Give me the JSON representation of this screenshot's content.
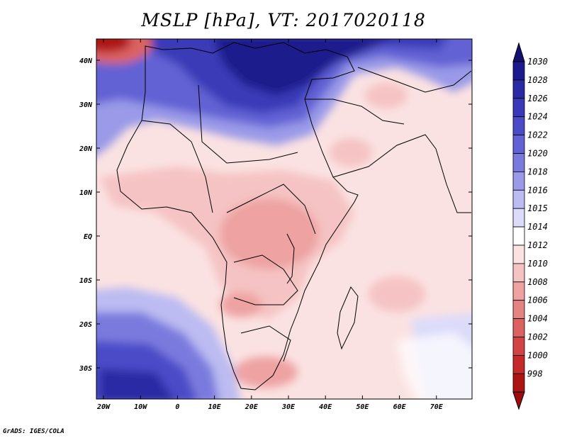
{
  "title": "MSLP [hPa], VT: 2017020118",
  "credit": "GrADS: IGES/COLA",
  "axes": {
    "lon_ticks": [
      "20W",
      "10W",
      "0",
      "10E",
      "20E",
      "30E",
      "40E",
      "50E",
      "60E",
      "70E"
    ],
    "lat_ticks": [
      "40N",
      "30N",
      "20N",
      "10N",
      "EQ",
      "10S",
      "20S",
      "30S"
    ]
  },
  "colorbar": {
    "levels": [
      "1030",
      "1028",
      "1026",
      "1024",
      "1022",
      "1020",
      "1018",
      "1016",
      "1015",
      "1014",
      "1012",
      "1010",
      "1008",
      "1006",
      "1004",
      "1002",
      "1000",
      "998"
    ],
    "colors": [
      "#1c1a8c",
      "#2a2aa4",
      "#3a3ab8",
      "#4b4bc8",
      "#6262d4",
      "#7a7ade",
      "#9a9ae8",
      "#bcbcf2",
      "#dcdcfa",
      "#ffffff",
      "#fbe2e2",
      "#f5c3c3",
      "#eea2a2",
      "#e58282",
      "#dc6262",
      "#d24444",
      "#c42a2a",
      "#ad1414"
    ],
    "top_arrow_color": "#131070",
    "bottom_arrow_color": "#9e0b0b"
  }
}
